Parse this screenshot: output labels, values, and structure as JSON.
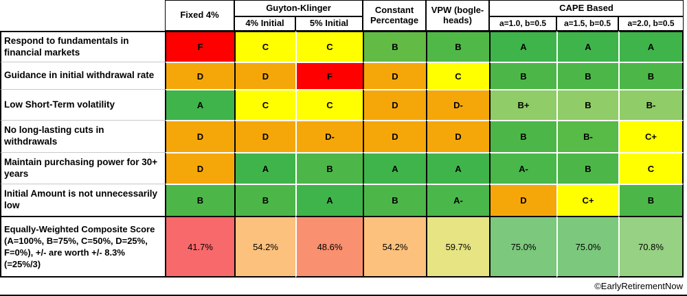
{
  "header": {
    "fixed": "Fixed 4%",
    "gk_group": "Guyton-Klinger",
    "gk_sub1": "4% Initial",
    "gk_sub2": "5% Initial",
    "constant": "Constant Percentage",
    "vpw": "VPW (bogle-heads)",
    "cape_group": "CAPE Based",
    "cape_sub1": "a=1.0, b=0.5",
    "cape_sub2": "a=1.5, b=0.5",
    "cape_sub3": "a=2.0, b=0.5"
  },
  "rows": [
    {
      "label": "Respond to fundamentals in financial markets",
      "cells": [
        {
          "v": "F",
          "bg": "#FE0000"
        },
        {
          "v": "C",
          "bg": "#FFFF00"
        },
        {
          "v": "C",
          "bg": "#FFFF00"
        },
        {
          "v": "B",
          "bg": "#62BB45"
        },
        {
          "v": "B",
          "bg": "#50B847"
        },
        {
          "v": "A",
          "bg": "#3FB44A"
        },
        {
          "v": "A",
          "bg": "#3FB44A"
        },
        {
          "v": "A",
          "bg": "#3FB44A"
        }
      ]
    },
    {
      "label": "Guidance in initial withdrawal rate",
      "cells": [
        {
          "v": "D",
          "bg": "#F5A70A"
        },
        {
          "v": "D",
          "bg": "#F5A70A"
        },
        {
          "v": "F",
          "bg": "#FE0000"
        },
        {
          "v": "D",
          "bg": "#F5A70A"
        },
        {
          "v": "C",
          "bg": "#FFFF00"
        },
        {
          "v": "B",
          "bg": "#4CB748"
        },
        {
          "v": "B",
          "bg": "#4CB748"
        },
        {
          "v": "B",
          "bg": "#4CB748"
        }
      ]
    },
    {
      "label": "Low Short-Term volatility",
      "cells": [
        {
          "v": "A",
          "bg": "#3FB44A"
        },
        {
          "v": "C",
          "bg": "#FFFF00"
        },
        {
          "v": "C",
          "bg": "#FFFF00"
        },
        {
          "v": "D",
          "bg": "#F5A70A"
        },
        {
          "v": "D-",
          "bg": "#F5A70A"
        },
        {
          "v": "B+",
          "bg": "#90CC67"
        },
        {
          "v": "B",
          "bg": "#90CC67"
        },
        {
          "v": "B-",
          "bg": "#90CC67"
        }
      ]
    },
    {
      "label": "No long-lasting cuts in withdrawals",
      "cells": [
        {
          "v": "D",
          "bg": "#F5A70A"
        },
        {
          "v": "D",
          "bg": "#F5A70A"
        },
        {
          "v": "D-",
          "bg": "#F5A70A"
        },
        {
          "v": "D",
          "bg": "#F5A70A"
        },
        {
          "v": "D",
          "bg": "#F5A70A"
        },
        {
          "v": "B",
          "bg": "#4CB748"
        },
        {
          "v": "B-",
          "bg": "#58BA47"
        },
        {
          "v": "C+",
          "bg": "#FFFF00"
        }
      ]
    },
    {
      "label": "Maintain purchasing power for 30+ years",
      "cells": [
        {
          "v": "D",
          "bg": "#F5A70A"
        },
        {
          "v": "A",
          "bg": "#3FB44A"
        },
        {
          "v": "B",
          "bg": "#4CB748"
        },
        {
          "v": "A",
          "bg": "#3FB44A"
        },
        {
          "v": "A",
          "bg": "#3FB44A"
        },
        {
          "v": "A-",
          "bg": "#49B749"
        },
        {
          "v": "B",
          "bg": "#4CB748"
        },
        {
          "v": "C",
          "bg": "#FFFF00"
        }
      ]
    },
    {
      "label": "Initial Amount is not unnecessarily low",
      "cells": [
        {
          "v": "B",
          "bg": "#4CB748"
        },
        {
          "v": "B",
          "bg": "#4CB748"
        },
        {
          "v": "A",
          "bg": "#3FB44A"
        },
        {
          "v": "B",
          "bg": "#4CB748"
        },
        {
          "v": "A-",
          "bg": "#49B749"
        },
        {
          "v": "D",
          "bg": "#F5A70A"
        },
        {
          "v": "C+",
          "bg": "#FFFF00"
        },
        {
          "v": "B",
          "bg": "#4CB748"
        }
      ]
    }
  ],
  "composite": {
    "label": "Equally-Weighted Composite Score (A=100%, B=75%, C=50%, D=25%, F=0%), +/- are worth +/- 8.3% (=25%/3)",
    "cells": [
      {
        "v": "41.7%",
        "bg": "#F8696B"
      },
      {
        "v": "54.2%",
        "bg": "#FCC17D"
      },
      {
        "v": "48.6%",
        "bg": "#F9906F"
      },
      {
        "v": "54.2%",
        "bg": "#FCC17D"
      },
      {
        "v": "59.7%",
        "bg": "#E6E483"
      },
      {
        "v": "75.0%",
        "bg": "#7CC87D"
      },
      {
        "v": "75.0%",
        "bg": "#7CC87D"
      },
      {
        "v": "70.8%",
        "bg": "#97D183"
      }
    ]
  },
  "footer": {
    "credit": "©EarlyRetirementNow"
  },
  "chart_data": {
    "type": "table",
    "columns": [
      "Fixed 4%",
      "Guyton-Klinger 4% Initial",
      "Guyton-Klinger 5% Initial",
      "Constant Percentage",
      "VPW (bogle-heads)",
      "CAPE Based a=1.0, b=0.5",
      "CAPE Based a=1.5, b=0.5",
      "CAPE Based a=2.0, b=0.5"
    ],
    "criteria": [
      "Respond to fundamentals in financial markets",
      "Guidance in initial withdrawal rate",
      "Low Short-Term volatility",
      "No long-lasting cuts in withdrawals",
      "Maintain purchasing power for 30+ years",
      "Initial Amount is not unnecessarily low"
    ],
    "grades": [
      [
        "F",
        "C",
        "C",
        "B",
        "B",
        "A",
        "A",
        "A"
      ],
      [
        "D",
        "D",
        "F",
        "D",
        "C",
        "B",
        "B",
        "B"
      ],
      [
        "A",
        "C",
        "C",
        "D",
        "D-",
        "B+",
        "B",
        "B-"
      ],
      [
        "D",
        "D",
        "D-",
        "D",
        "D",
        "B",
        "B-",
        "C+"
      ],
      [
        "D",
        "A",
        "B",
        "A",
        "A",
        "A-",
        "B",
        "C"
      ],
      [
        "B",
        "B",
        "A",
        "B",
        "A-",
        "D",
        "C+",
        "B"
      ]
    ],
    "composite_scores_pct": [
      41.7,
      54.2,
      48.6,
      54.2,
      59.7,
      75.0,
      75.0,
      70.8
    ],
    "grading_legend": "A=100%, B=75%, C=50%, D=25%, F=0%, +/- are worth +/- 8.3% (=25%/3)",
    "color_scale": {
      "low": "#F8696B",
      "mid": "#FFEB84",
      "high": "#63BE7B"
    }
  }
}
